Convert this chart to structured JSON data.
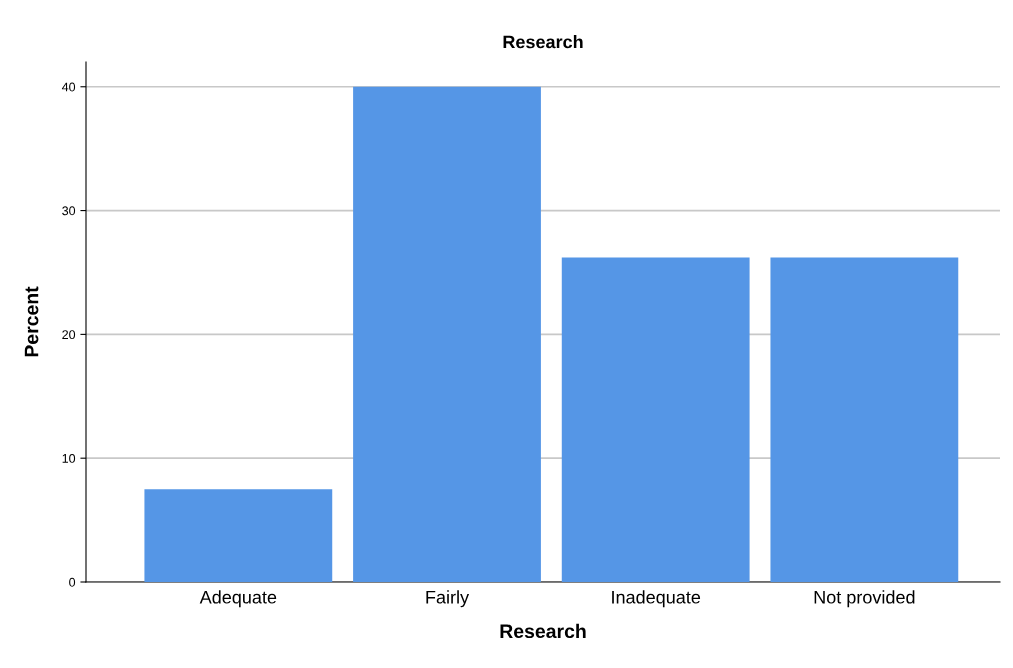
{
  "chart_data": {
    "type": "bar",
    "title": "Research",
    "xlabel": "Research",
    "ylabel": "Percent",
    "categories": [
      "Adequate",
      "Fairly",
      "Inadequate",
      "Not provided"
    ],
    "values": [
      7.5,
      40,
      26.2,
      26.2
    ],
    "color": "#5596e6",
    "ylim": [
      0,
      42
    ],
    "yticks": [
      0,
      10,
      20,
      30,
      40
    ],
    "grid": "y"
  }
}
